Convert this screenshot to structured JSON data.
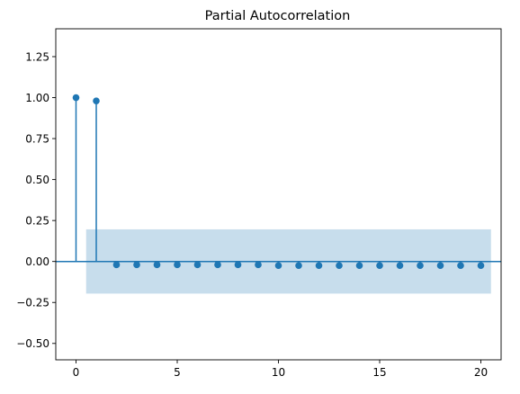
{
  "chart_data": {
    "type": "stem",
    "title": "Partial Autocorrelation",
    "xlabel": "",
    "ylabel": "",
    "xlim": [
      -1,
      21
    ],
    "ylim": [
      -0.6,
      1.42
    ],
    "x_ticks": [
      0,
      5,
      10,
      15,
      20
    ],
    "x_tick_labels": [
      "0",
      "5",
      "10",
      "15",
      "20"
    ],
    "y_ticks": [
      -0.5,
      -0.25,
      0.0,
      0.25,
      0.5,
      0.75,
      1.0,
      1.25
    ],
    "y_tick_labels": [
      "−0.50",
      "−0.25",
      "0.00",
      "0.25",
      "0.50",
      "0.75",
      "1.00",
      "1.25"
    ],
    "lags": [
      0,
      1,
      2,
      3,
      4,
      5,
      6,
      7,
      8,
      9,
      10,
      11,
      12,
      13,
      14,
      15,
      16,
      17,
      18,
      19,
      20
    ],
    "values": [
      1.0,
      0.98,
      -0.02,
      -0.02,
      -0.02,
      -0.02,
      -0.02,
      -0.02,
      -0.02,
      -0.02,
      -0.025,
      -0.025,
      -0.025,
      -0.025,
      -0.025,
      -0.025,
      -0.025,
      -0.025,
      -0.025,
      -0.025,
      -0.025
    ],
    "confidence_band": {
      "x_start": 0.5,
      "x_end": 20.5,
      "lower": -0.196,
      "upper": 0.196
    },
    "grid": false,
    "colors": {
      "marker": "#1f77b4",
      "band": "#1f77b4",
      "zero_line": "#1f77b4"
    }
  }
}
